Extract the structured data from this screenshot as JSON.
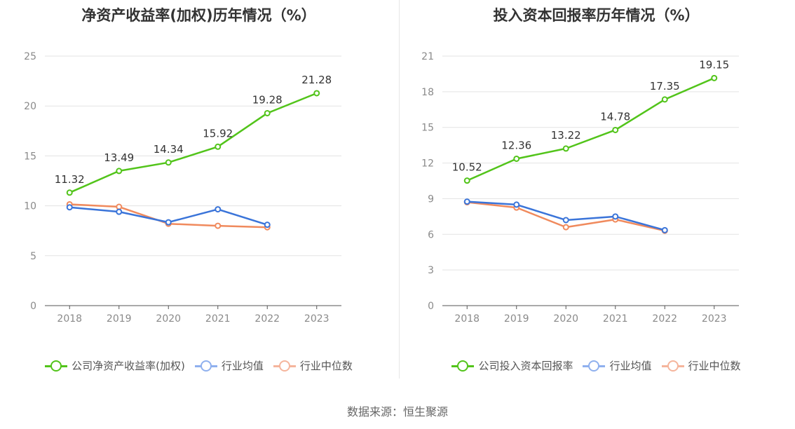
{
  "colors": {
    "company": "#52c41a",
    "avg": "#3a74d9",
    "median": "#f08a5d",
    "avg_legend": "#8fb0ee",
    "median_legend": "#f5b59c"
  },
  "source": "数据来源：恒生聚源",
  "chart_data": [
    {
      "type": "line",
      "title": "净资产收益率(加权)历年情况（%）",
      "categories": [
        "2018",
        "2019",
        "2020",
        "2021",
        "2022",
        "2023"
      ],
      "ylim": [
        0,
        25
      ],
      "yticks": [
        "0",
        "5",
        "10",
        "15",
        "20",
        "25"
      ],
      "grid": true,
      "legend_position": "bottom",
      "series": [
        {
          "name": "公司净资产收益率(加权)",
          "values": [
            11.32,
            13.49,
            14.34,
            15.92,
            19.28,
            21.28
          ],
          "labels": [
            "11.32",
            "13.49",
            "14.34",
            "15.92",
            "19.28",
            "21.28"
          ]
        },
        {
          "name": "行业均值",
          "values": [
            9.85,
            9.4,
            8.35,
            9.65,
            8.1,
            null
          ]
        },
        {
          "name": "行业中位数",
          "values": [
            10.15,
            9.9,
            8.2,
            8.0,
            7.85,
            null
          ]
        }
      ]
    },
    {
      "type": "line",
      "title": "投入资本回报率历年情况（%）",
      "categories": [
        "2018",
        "2019",
        "2020",
        "2021",
        "2022",
        "2023"
      ],
      "ylim": [
        0,
        21
      ],
      "yticks": [
        "0",
        "3",
        "6",
        "9",
        "12",
        "15",
        "18",
        "21"
      ],
      "grid": true,
      "legend_position": "bottom",
      "series": [
        {
          "name": "公司投入资本回报率",
          "values": [
            10.52,
            12.36,
            13.22,
            14.78,
            17.35,
            19.15
          ],
          "labels": [
            "10.52",
            "12.36",
            "13.22",
            "14.78",
            "17.35",
            "19.15"
          ]
        },
        {
          "name": "行业均值",
          "values": [
            8.75,
            8.5,
            7.2,
            7.5,
            6.35,
            null
          ]
        },
        {
          "name": "行业中位数",
          "values": [
            8.7,
            8.25,
            6.6,
            7.25,
            6.3,
            null
          ]
        }
      ]
    }
  ]
}
